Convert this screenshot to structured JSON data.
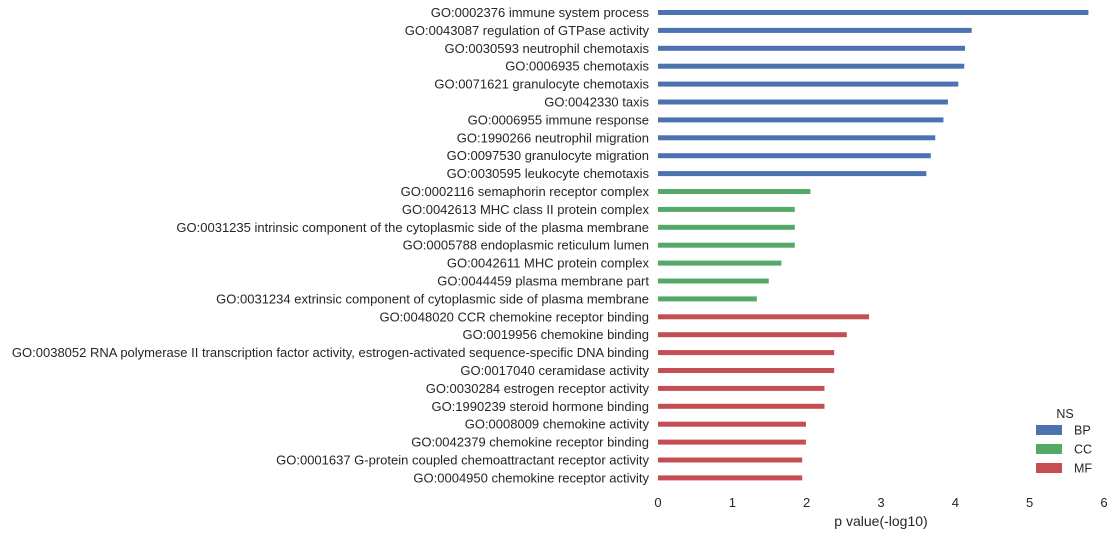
{
  "chart_data": {
    "type": "bar",
    "orientation": "horizontal",
    "categories": [
      "GO:0002376 immune system process",
      "GO:0043087 regulation of GTPase activity",
      "GO:0030593 neutrophil chemotaxis",
      "GO:0006935 chemotaxis",
      "GO:0071621 granulocyte chemotaxis",
      "GO:0042330 taxis",
      "GO:0006955 immune response",
      "GO:1990266 neutrophil migration",
      "GO:0097530 granulocyte migration",
      "GO:0030595 leukocyte chemotaxis",
      "GO:0002116 semaphorin receptor complex",
      "GO:0042613 MHC class II protein complex",
      "GO:0031235 intrinsic component of the cytoplasmic side of the plasma membrane",
      "GO:0005788 endoplasmic reticulum lumen",
      "GO:0042611 MHC protein complex",
      "GO:0044459 plasma membrane part",
      "GO:0031234 extrinsic component of cytoplasmic side of plasma membrane",
      "GO:0048020 CCR chemokine receptor binding",
      "GO:0019956 chemokine binding",
      "GO:0038052 RNA polymerase II transcription factor activity, estrogen-activated sequence-specific DNA binding",
      "GO:0017040 ceramidase activity",
      "GO:0030284 estrogen receptor activity",
      "GO:1990239 steroid hormone binding",
      "GO:0008009 chemokine activity",
      "GO:0042379 chemokine receptor binding",
      "GO:0001637 G-protein coupled chemoattractant receptor activity",
      "GO:0004950 chemokine receptor activity"
    ],
    "values": [
      5.79,
      4.22,
      4.13,
      4.12,
      4.04,
      3.9,
      3.84,
      3.73,
      3.67,
      3.61,
      2.05,
      1.84,
      1.84,
      1.84,
      1.66,
      1.49,
      1.33,
      2.84,
      2.54,
      2.37,
      2.37,
      2.24,
      2.24,
      1.99,
      1.99,
      1.94,
      1.94
    ],
    "groups": [
      "BP",
      "BP",
      "BP",
      "BP",
      "BP",
      "BP",
      "BP",
      "BP",
      "BP",
      "BP",
      "CC",
      "CC",
      "CC",
      "CC",
      "CC",
      "CC",
      "CC",
      "MF",
      "MF",
      "MF",
      "MF",
      "MF",
      "MF",
      "MF",
      "MF",
      "MF",
      "MF"
    ],
    "series": [
      {
        "name": "BP",
        "color": "#4c72b0"
      },
      {
        "name": "CC",
        "color": "#55a868"
      },
      {
        "name": "MF",
        "color": "#c44e52"
      }
    ],
    "xlabel": "p value(-log10)",
    "ylabel": "",
    "xlim": [
      0,
      6
    ],
    "xticks": [
      "0",
      "1",
      "2",
      "3",
      "4",
      "5",
      "6"
    ],
    "legend_title": "NS",
    "legend_position": "lower-right",
    "grid": false
  }
}
